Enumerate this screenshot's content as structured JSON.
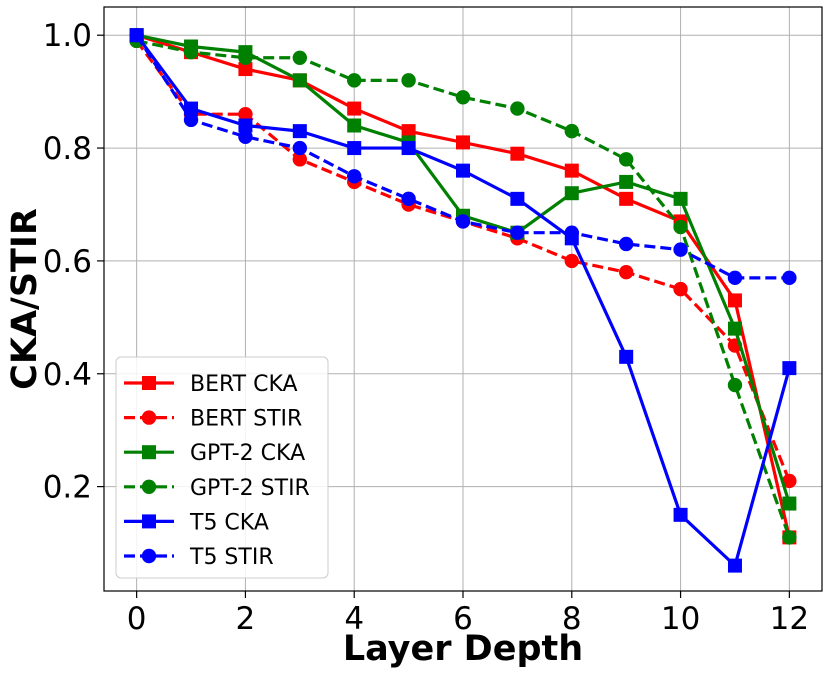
{
  "chart_data": {
    "type": "line",
    "xlabel": "Layer Depth",
    "ylabel": "CKA/STIR",
    "xlim": [
      -0.6,
      12.6
    ],
    "ylim": [
      0.015,
      1.05
    ],
    "xticks": [
      0,
      2,
      4,
      6,
      8,
      10,
      12
    ],
    "yticks": [
      0.2,
      0.4,
      0.6,
      0.8,
      1.0
    ],
    "xtick_labels": [
      "0",
      "2",
      "4",
      "6",
      "8",
      "10",
      "12"
    ],
    "ytick_labels": [
      "0.2",
      "0.4",
      "0.6",
      "0.8",
      "1.0"
    ],
    "grid": true,
    "legend_position": "lower-left",
    "x": [
      0,
      1,
      2,
      3,
      4,
      5,
      6,
      7,
      8,
      9,
      10,
      11,
      12
    ],
    "series": [
      {
        "name": "BERT CKA",
        "color": "#ff0000",
        "style": "solid",
        "marker": "square",
        "values": [
          1.0,
          0.97,
          0.94,
          0.92,
          0.87,
          0.83,
          0.81,
          0.79,
          0.76,
          0.71,
          0.67,
          0.53,
          0.11
        ]
      },
      {
        "name": "BERT STIR",
        "color": "#ff0000",
        "style": "dashed",
        "marker": "circle",
        "values": [
          0.99,
          0.86,
          0.86,
          0.78,
          0.74,
          0.7,
          0.67,
          0.64,
          0.6,
          0.58,
          0.55,
          0.45,
          0.21
        ]
      },
      {
        "name": "GPT-2 CKA",
        "color": "#008000",
        "style": "solid",
        "marker": "square",
        "values": [
          1.0,
          0.98,
          0.97,
          0.92,
          0.84,
          0.81,
          0.68,
          0.65,
          0.72,
          0.74,
          0.71,
          0.48,
          0.17
        ]
      },
      {
        "name": "GPT-2 STIR",
        "color": "#008000",
        "style": "dashed",
        "marker": "circle",
        "values": [
          0.99,
          0.97,
          0.96,
          0.96,
          0.92,
          0.92,
          0.89,
          0.87,
          0.83,
          0.78,
          0.66,
          0.38,
          0.11
        ]
      },
      {
        "name": "T5 CKA",
        "color": "#0000ff",
        "style": "solid",
        "marker": "square",
        "values": [
          1.0,
          0.87,
          0.84,
          0.83,
          0.8,
          0.8,
          0.76,
          0.71,
          0.64,
          0.43,
          0.15,
          0.06,
          0.41
        ]
      },
      {
        "name": "T5 STIR",
        "color": "#0000ff",
        "style": "dashed",
        "marker": "circle",
        "values": [
          1.0,
          0.85,
          0.82,
          0.8,
          0.75,
          0.71,
          0.67,
          0.65,
          0.65,
          0.63,
          0.62,
          0.57,
          0.57
        ]
      }
    ]
  }
}
